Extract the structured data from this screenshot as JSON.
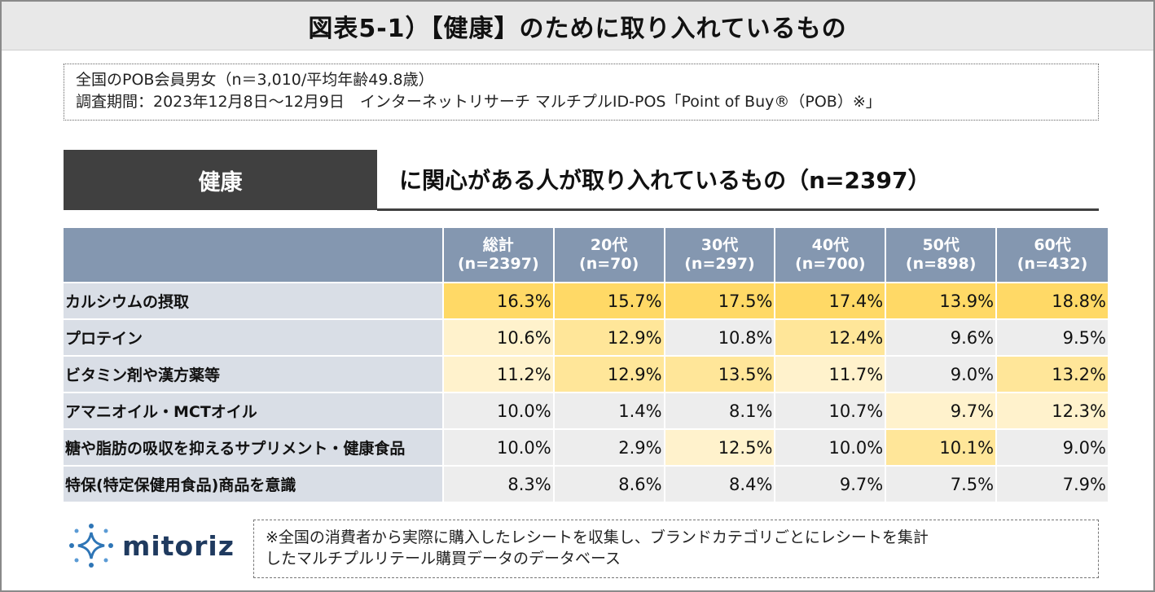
{
  "title": "図表5-1）【健康】のために取り入れているもの",
  "info": {
    "line1": "全国のPOB会員男女（n＝3,010/平均年齢49.8歳）",
    "line2": "調査期間：2023年12月8日～12月9日　インターネットリサーチ マルチプルID-POS「Point of Buy®（POB）※」"
  },
  "topic": "健康",
  "subtitle": "に関心がある人が取り入れているもの（n=2397）",
  "table": {
    "headers": [
      {
        "l1": "総計",
        "l2": "(n=2397)"
      },
      {
        "l1": "20代",
        "l2": "(n=70)"
      },
      {
        "l1": "30代",
        "l2": "(n=297)"
      },
      {
        "l1": "40代",
        "l2": "(n=700)"
      },
      {
        "l1": "50代",
        "l2": "(n=898)"
      },
      {
        "l1": "60代",
        "l2": "(n=432)"
      }
    ],
    "rows": [
      {
        "label": "カルシウムの摂取",
        "values": [
          "16.3%",
          "15.7%",
          "17.5%",
          "17.4%",
          "13.9%",
          "18.8%"
        ]
      },
      {
        "label": "プロテイン",
        "values": [
          "10.6%",
          "12.9%",
          "10.8%",
          "12.4%",
          "9.6%",
          "9.5%"
        ]
      },
      {
        "label": "ビタミン剤や漢方薬等",
        "values": [
          "11.2%",
          "12.9%",
          "13.5%",
          "11.7%",
          "9.0%",
          "13.2%"
        ]
      },
      {
        "label": "アマニオイル・MCTオイル",
        "values": [
          "10.0%",
          "1.4%",
          "8.1%",
          "10.7%",
          "9.7%",
          "12.3%"
        ]
      },
      {
        "label": "糖や脂肪の吸収を抑えるサプリメント・健康食品",
        "values": [
          "10.0%",
          "2.9%",
          "12.5%",
          "10.0%",
          "10.1%",
          "9.0%"
        ]
      },
      {
        "label": "特保(特定保健用食品)商品を意識",
        "values": [
          "8.3%",
          "8.6%",
          "8.4%",
          "9.7%",
          "7.5%",
          "7.9%"
        ]
      }
    ]
  },
  "logo_text": "mitoriz",
  "note": {
    "line1": "※全国の消費者から実際に購入したレシートを収集し、ブランドカテゴリごとにレシートを集計",
    "line2": "したマルチプルリテール購買データのデータベース"
  },
  "colors": {
    "header": "#8497b0",
    "label_bg": "#d9dee6",
    "high": "#ffd966",
    "mid": "#ffe699",
    "low": "#fff2cc",
    "none": "#ededed",
    "topic_bg": "#404040"
  }
}
